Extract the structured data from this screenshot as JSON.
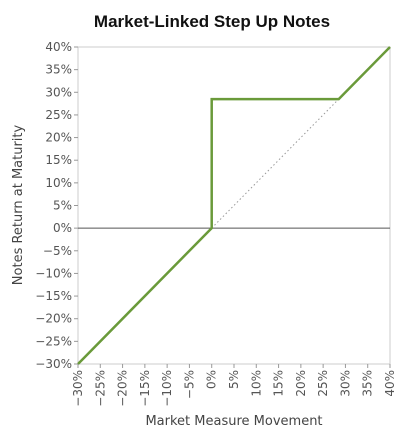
{
  "chart_data": {
    "type": "line",
    "title": "Market-Linked Step Up Notes",
    "xlabel": "Market Measure Movement",
    "ylabel": "Notes Return at Maturity",
    "xlim": [
      -30,
      40
    ],
    "ylim": [
      -30,
      40
    ],
    "x_ticks": [
      "−30%",
      "−25%",
      "−20%",
      "−15%",
      "−10%",
      "−5%",
      "0%",
      "5%",
      "10%",
      "15%",
      "20%",
      "25%",
      "30%",
      "35%",
      "40%"
    ],
    "y_ticks": [
      "−30%",
      "−25%",
      "−20%",
      "−15%",
      "−10%",
      "−5%",
      "0%",
      "5%",
      "10%",
      "15%",
      "20%",
      "25%",
      "30%",
      "35%",
      "40%"
    ],
    "x_tick_values": [
      -30,
      -25,
      -20,
      -15,
      -10,
      -5,
      0,
      5,
      10,
      15,
      20,
      25,
      30,
      35,
      40
    ],
    "y_tick_values": [
      -30,
      -25,
      -20,
      -15,
      -10,
      -5,
      0,
      5,
      10,
      15,
      20,
      25,
      30,
      35,
      40
    ],
    "grid": false,
    "series": [
      {
        "x": [
          -30,
          0,
          0,
          28.5,
          40
        ],
        "y": [
          -30,
          0,
          28.5,
          28.5,
          40
        ],
        "color": "#6a9a3a",
        "style": "solid"
      },
      {
        "x": [
          0,
          28.5
        ],
        "y": [
          0,
          28.5
        ],
        "color": "#999999",
        "style": "dotted"
      }
    ],
    "reference_line": {
      "y": 0,
      "color": "#555555"
    }
  }
}
